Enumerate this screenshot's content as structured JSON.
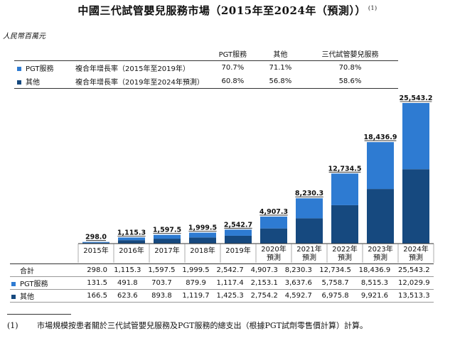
{
  "title": "中國三代試管嬰兒服務市場（2015年至2024年（預測））",
  "title_note": "(1)",
  "unit": "人民幣百萬元",
  "cagr_table": {
    "headers": [
      "PGT服務",
      "其他",
      "三代試管嬰兒服務"
    ],
    "rows": [
      {
        "legend": "PGT服務",
        "label": "複合年增長率（2015年至2019年）",
        "values": [
          "70.7%",
          "71.1%",
          "70.8%"
        ]
      },
      {
        "legend": "其他",
        "label": "複合年增長率（2019年至2024年預測）",
        "values": [
          "60.8%",
          "56.8%",
          "58.6%"
        ]
      }
    ]
  },
  "colors": {
    "pgt": "#2e7bd2",
    "other": "#16497f"
  },
  "chart_data": {
    "type": "bar",
    "stacked": true,
    "categories": [
      "2015年",
      "2016年",
      "2017年",
      "2018年",
      "2019年",
      "2020年預測",
      "2021年預測",
      "2022年預測",
      "2023年預測",
      "2024年預測"
    ],
    "category_lines": [
      [
        "2015年"
      ],
      [
        "2016年"
      ],
      [
        "2017年"
      ],
      [
        "2018年"
      ],
      [
        "2019年"
      ],
      [
        "2020年",
        "預測"
      ],
      [
        "2021年",
        "預測"
      ],
      [
        "2022年",
        "預測"
      ],
      [
        "2023年",
        "預測"
      ],
      [
        "2024年",
        "預測"
      ]
    ],
    "series": [
      {
        "name": "其他",
        "values": [
          166.5,
          623.6,
          893.8,
          1119.7,
          1425.3,
          2754.2,
          4592.7,
          6975.8,
          9921.6,
          13513.3
        ]
      },
      {
        "name": "PGT服務",
        "values": [
          131.5,
          491.8,
          703.7,
          879.9,
          1117.4,
          2153.1,
          3637.6,
          5758.7,
          8515.3,
          12029.9
        ]
      }
    ],
    "totals": [
      298.0,
      1115.3,
      1597.5,
      1999.5,
      2542.7,
      4907.3,
      8230.3,
      12734.5,
      18436.9,
      25543.2
    ],
    "total_labels": [
      "298.0",
      "1,115.3",
      "1,597.5",
      "1,999.5",
      "2,542.7",
      "4,907.3",
      "8,230.3",
      "12,734.5",
      "18,436.9",
      "25,543.2"
    ],
    "ylim": [
      0,
      25543.2
    ]
  },
  "table": {
    "rows": [
      {
        "label": "合計",
        "values": [
          "298.0",
          "1,115.3",
          "1,597.5",
          "1,999.5",
          "2,542.7",
          "4,907.3",
          "8,230.3",
          "12,734.5",
          "18,436.9",
          "25,543.2"
        ]
      },
      {
        "label": "PGT服務",
        "values": [
          "131.5",
          "491.8",
          "703.7",
          "879.9",
          "1,117.4",
          "2,153.1",
          "3,637.6",
          "5,758.7",
          "8,515.3",
          "12,029.9"
        ]
      },
      {
        "label": "其他",
        "values": [
          "166.5",
          "623.6",
          "893.8",
          "1,119.7",
          "1,425.3",
          "2,754.2",
          "4,592.7",
          "6,975.8",
          "9,921.6",
          "13,513.3"
        ]
      }
    ]
  },
  "footnote": {
    "number": "(1)",
    "text": "市場規模按患者關於三代試管嬰兒服務及PGT服務的總支出（根據PGT試劑零售價計算）計算。"
  }
}
